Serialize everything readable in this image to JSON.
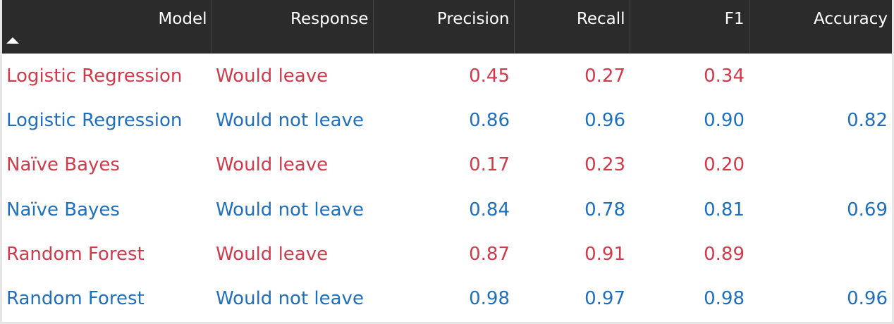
{
  "columns": {
    "model": "Model",
    "response": "Response",
    "precision": "Precision",
    "recall": "Recall",
    "f1": "F1",
    "accuracy": "Accuracy"
  },
  "colors": {
    "header_bg": "#2b2b2b",
    "would_leave": "#d13a4a",
    "would_not_leave": "#1f6fbf"
  },
  "sort": {
    "column": "model",
    "direction": "ascending",
    "icon": "sort-ascending-icon"
  },
  "rows": [
    {
      "model": "Logistic Regression",
      "response": "Would leave",
      "precision": "0.45",
      "recall": "0.27",
      "f1": "0.34",
      "accuracy": ""
    },
    {
      "model": "Logistic Regression",
      "response": "Would not leave",
      "precision": "0.86",
      "recall": "0.96",
      "f1": "0.90",
      "accuracy": "0.82"
    },
    {
      "model": "Naïve Bayes",
      "response": "Would leave",
      "precision": "0.17",
      "recall": "0.23",
      "f1": "0.20",
      "accuracy": ""
    },
    {
      "model": "Naïve Bayes",
      "response": "Would not leave",
      "precision": "0.84",
      "recall": "0.78",
      "f1": "0.81",
      "accuracy": "0.69"
    },
    {
      "model": "Random Forest",
      "response": "Would leave",
      "precision": "0.87",
      "recall": "0.91",
      "f1": "0.89",
      "accuracy": ""
    },
    {
      "model": "Random Forest",
      "response": "Would not leave",
      "precision": "0.98",
      "recall": "0.97",
      "f1": "0.98",
      "accuracy": "0.96"
    }
  ]
}
